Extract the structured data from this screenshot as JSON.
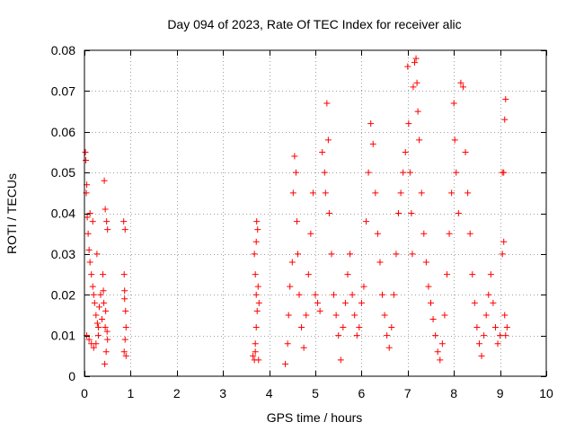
{
  "chart_data": {
    "type": "scatter",
    "title": "Day 094 of 2023, Rate Of TEC Index for receiver alic",
    "xlabel": "GPS time / hours",
    "ylabel": "ROTI / TECUs",
    "xlim": [
      0,
      10
    ],
    "ylim": [
      0,
      0.08
    ],
    "x_ticks": [
      0,
      1,
      2,
      3,
      4,
      5,
      6,
      7,
      8,
      9,
      10
    ],
    "x_tick_labels": [
      "0",
      "1",
      "2",
      "3",
      "4",
      "5",
      "6",
      "7",
      "8",
      "9",
      "10"
    ],
    "y_ticks": [
      0,
      0.01,
      0.02,
      0.03,
      0.04,
      0.05,
      0.06,
      0.07,
      0.08
    ],
    "y_tick_labels": [
      "0",
      "0.01",
      "0.02",
      "0.03",
      "0.04",
      "0.05",
      "0.06",
      "0.07",
      "0.08"
    ],
    "grid": true,
    "marker": "+",
    "marker_color": "#ff0000",
    "series": [
      {
        "name": "ROTI",
        "points": [
          [
            0.02,
            0.055
          ],
          [
            0.03,
            0.053
          ],
          [
            0.05,
            0.047
          ],
          [
            0.04,
            0.045
          ],
          [
            0.06,
            0.039
          ],
          [
            0.08,
            0.035
          ],
          [
            0.1,
            0.031
          ],
          [
            0.12,
            0.028
          ],
          [
            0.15,
            0.025
          ],
          [
            0.18,
            0.022
          ],
          [
            0.2,
            0.02
          ],
          [
            0.22,
            0.018
          ],
          [
            0.25,
            0.015
          ],
          [
            0.28,
            0.013
          ],
          [
            0.3,
            0.012
          ],
          [
            0.05,
            0.01
          ],
          [
            0.1,
            0.009
          ],
          [
            0.15,
            0.008
          ],
          [
            0.2,
            0.007
          ],
          [
            0.25,
            0.008
          ],
          [
            0.3,
            0.01
          ],
          [
            0.35,
            0.02
          ],
          [
            0.4,
            0.025
          ],
          [
            0.42,
            0.018
          ],
          [
            0.45,
            0.012
          ],
          [
            0.43,
            0.048
          ],
          [
            0.45,
            0.041
          ],
          [
            0.48,
            0.038
          ],
          [
            0.5,
            0.036
          ],
          [
            0.44,
            0.003
          ],
          [
            0.47,
            0.006
          ],
          [
            0.5,
            0.009
          ],
          [
            0.12,
            0.04
          ],
          [
            0.18,
            0.038
          ],
          [
            0.27,
            0.03
          ],
          [
            0.32,
            0.017
          ],
          [
            0.38,
            0.014
          ],
          [
            0.41,
            0.021
          ],
          [
            0.46,
            0.016
          ],
          [
            0.49,
            0.011
          ],
          [
            0.85,
            0.038
          ],
          [
            0.88,
            0.036
          ],
          [
            0.86,
            0.025
          ],
          [
            0.87,
            0.019
          ],
          [
            0.89,
            0.016
          ],
          [
            0.9,
            0.012
          ],
          [
            0.88,
            0.009
          ],
          [
            0.86,
            0.006
          ],
          [
            0.9,
            0.005
          ],
          [
            0.87,
            0.021
          ],
          [
            3.65,
            0.005
          ],
          [
            3.68,
            0.004
          ],
          [
            3.7,
            0.008
          ],
          [
            3.72,
            0.012
          ],
          [
            3.74,
            0.016
          ],
          [
            3.72,
            0.02
          ],
          [
            3.7,
            0.025
          ],
          [
            3.68,
            0.03
          ],
          [
            3.72,
            0.033
          ],
          [
            3.75,
            0.036
          ],
          [
            3.73,
            0.038
          ],
          [
            3.76,
            0.022
          ],
          [
            3.78,
            0.018
          ],
          [
            3.7,
            0.006
          ],
          [
            3.77,
            0.004
          ],
          [
            4.35,
            0.003
          ],
          [
            4.4,
            0.008
          ],
          [
            4.42,
            0.015
          ],
          [
            4.45,
            0.022
          ],
          [
            4.5,
            0.028
          ],
          [
            4.52,
            0.045
          ],
          [
            4.55,
            0.054
          ],
          [
            4.58,
            0.05
          ],
          [
            4.6,
            0.038
          ],
          [
            4.62,
            0.03
          ],
          [
            4.65,
            0.02
          ],
          [
            4.7,
            0.012
          ],
          [
            4.75,
            0.007
          ],
          [
            4.8,
            0.015
          ],
          [
            4.85,
            0.025
          ],
          [
            4.9,
            0.035
          ],
          [
            4.95,
            0.045
          ],
          [
            5.0,
            0.02
          ],
          [
            5.05,
            0.018
          ],
          [
            5.1,
            0.016
          ],
          [
            5.15,
            0.055
          ],
          [
            5.2,
            0.05
          ],
          [
            5.22,
            0.045
          ],
          [
            5.25,
            0.067
          ],
          [
            5.28,
            0.058
          ],
          [
            5.3,
            0.04
          ],
          [
            5.35,
            0.03
          ],
          [
            5.4,
            0.02
          ],
          [
            5.45,
            0.015
          ],
          [
            5.5,
            0.01
          ],
          [
            5.55,
            0.004
          ],
          [
            5.6,
            0.012
          ],
          [
            5.65,
            0.018
          ],
          [
            5.7,
            0.025
          ],
          [
            5.75,
            0.03
          ],
          [
            5.8,
            0.02
          ],
          [
            5.85,
            0.015
          ],
          [
            5.9,
            0.01
          ],
          [
            5.95,
            0.012
          ],
          [
            6.0,
            0.018
          ],
          [
            6.05,
            0.022
          ],
          [
            6.1,
            0.038
          ],
          [
            6.15,
            0.05
          ],
          [
            6.2,
            0.062
          ],
          [
            6.25,
            0.057
          ],
          [
            6.3,
            0.045
          ],
          [
            6.35,
            0.035
          ],
          [
            6.4,
            0.028
          ],
          [
            6.45,
            0.02
          ],
          [
            6.5,
            0.015
          ],
          [
            6.55,
            0.01
          ],
          [
            6.6,
            0.007
          ],
          [
            6.65,
            0.012
          ],
          [
            6.7,
            0.02
          ],
          [
            6.75,
            0.03
          ],
          [
            6.8,
            0.04
          ],
          [
            6.85,
            0.045
          ],
          [
            6.9,
            0.05
          ],
          [
            6.95,
            0.055
          ],
          [
            7.0,
            0.076
          ],
          [
            7.02,
            0.062
          ],
          [
            7.05,
            0.05
          ],
          [
            7.08,
            0.04
          ],
          [
            7.1,
            0.03
          ],
          [
            7.12,
            0.071
          ],
          [
            7.15,
            0.077
          ],
          [
            7.18,
            0.078
          ],
          [
            7.2,
            0.072
          ],
          [
            7.22,
            0.065
          ],
          [
            7.25,
            0.058
          ],
          [
            7.3,
            0.045
          ],
          [
            7.35,
            0.035
          ],
          [
            7.4,
            0.028
          ],
          [
            7.45,
            0.022
          ],
          [
            7.5,
            0.018
          ],
          [
            7.55,
            0.014
          ],
          [
            7.6,
            0.01
          ],
          [
            7.65,
            0.006
          ],
          [
            7.7,
            0.004
          ],
          [
            7.75,
            0.008
          ],
          [
            7.8,
            0.015
          ],
          [
            7.85,
            0.025
          ],
          [
            7.9,
            0.035
          ],
          [
            7.95,
            0.045
          ],
          [
            8.0,
            0.067
          ],
          [
            8.02,
            0.058
          ],
          [
            8.05,
            0.05
          ],
          [
            8.1,
            0.04
          ],
          [
            8.15,
            0.072
          ],
          [
            8.2,
            0.071
          ],
          [
            8.25,
            0.055
          ],
          [
            8.3,
            0.045
          ],
          [
            8.35,
            0.035
          ],
          [
            8.4,
            0.025
          ],
          [
            8.45,
            0.018
          ],
          [
            8.5,
            0.012
          ],
          [
            8.55,
            0.008
          ],
          [
            8.6,
            0.005
          ],
          [
            8.65,
            0.01
          ],
          [
            8.7,
            0.015
          ],
          [
            8.75,
            0.02
          ],
          [
            8.8,
            0.025
          ],
          [
            8.85,
            0.018
          ],
          [
            8.9,
            0.012
          ],
          [
            8.95,
            0.008
          ],
          [
            9.0,
            0.01
          ],
          [
            9.05,
            0.03
          ],
          [
            9.08,
            0.05
          ],
          [
            9.1,
            0.063
          ],
          [
            9.12,
            0.068
          ],
          [
            9.05,
            0.05
          ],
          [
            9.08,
            0.033
          ],
          [
            9.1,
            0.015
          ],
          [
            9.12,
            0.01
          ],
          [
            9.15,
            0.012
          ]
        ]
      }
    ]
  }
}
